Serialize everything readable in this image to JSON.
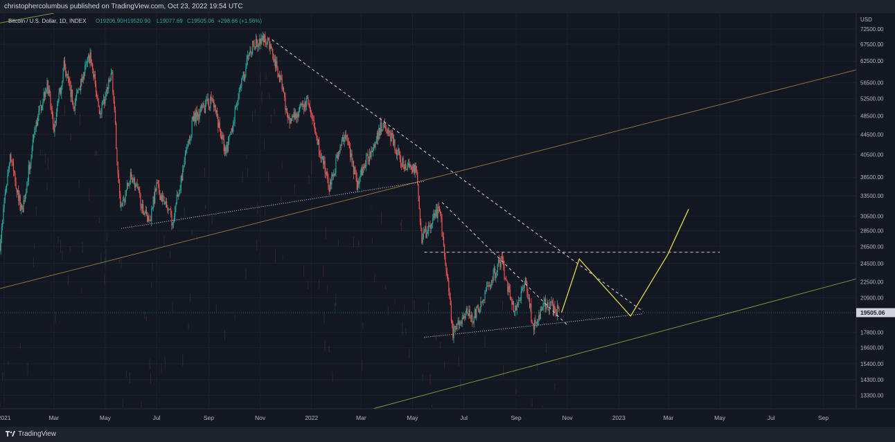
{
  "header": {
    "text": "christophercolumbus published on TradingView.com, Oct 23, 2022 19:54 UTC"
  },
  "footer": {
    "brand": "TradingView"
  },
  "colors": {
    "bg": "#131722",
    "up": "#26a69a",
    "down": "#ef5350",
    "price_tag": "#d1d4dc",
    "yellow": "#e5d94a",
    "orange": "#b08c43",
    "green": "#9fb84a",
    "white": "#d1d4dc"
  },
  "chart_data": {
    "type": "candlestick",
    "symbol_line": {
      "name": "Bitcoin / U.S. Dollar, 1D, INDEX",
      "open": "O19206.90",
      "high": "H19520.90",
      "low": "L19077.69",
      "close": "C19505.06",
      "change": "+298.66 (+1.56%)"
    },
    "currency": "USD",
    "last_price": 19505.06,
    "last_price_label": "19505.06",
    "y_axis": {
      "scale": "log",
      "range": [
        12500,
        78000
      ],
      "ticks": [
        "72500.00",
        "67500.00",
        "62500.00",
        "56500.00",
        "52500.00",
        "48500.00",
        "44500.00",
        "40500.00",
        "36500.00",
        "33500.00",
        "30500.00",
        "28500.00",
        "26500.00",
        "24500.00",
        "22500.00",
        "20900.00",
        "17800.00",
        "16600.00",
        "15400.00",
        "14300.00",
        "13300.00"
      ]
    },
    "x_axis": {
      "range": [
        "2020-12-27",
        "2023-10-10"
      ],
      "ticks": [
        {
          "date": "2021-01-01",
          "label": "2021"
        },
        {
          "date": "2021-03-01",
          "label": "Mar"
        },
        {
          "date": "2021-05-01",
          "label": "May"
        },
        {
          "date": "2021-07-01",
          "label": "Jul"
        },
        {
          "date": "2021-09-01",
          "label": "Sep"
        },
        {
          "date": "2021-11-01",
          "label": "Nov"
        },
        {
          "date": "2022-01-01",
          "label": "2022"
        },
        {
          "date": "2022-03-01",
          "label": "Mar"
        },
        {
          "date": "2022-05-01",
          "label": "May"
        },
        {
          "date": "2022-07-01",
          "label": "Jul"
        },
        {
          "date": "2022-09-01",
          "label": "Sep"
        },
        {
          "date": "2022-11-01",
          "label": "Nov"
        },
        {
          "date": "2023-01-01",
          "label": "2023"
        },
        {
          "date": "2023-03-01",
          "label": "Mar"
        },
        {
          "date": "2023-05-01",
          "label": "May"
        },
        {
          "date": "2023-07-01",
          "label": "Jul"
        },
        {
          "date": "2023-09-01",
          "label": "Sep"
        }
      ]
    },
    "price_path": [
      [
        "2020-12-27",
        26800
      ],
      [
        "2021-01-08",
        40500
      ],
      [
        "2021-01-22",
        31000
      ],
      [
        "2021-02-08",
        46500
      ],
      [
        "2021-02-21",
        57000
      ],
      [
        "2021-03-01",
        45500
      ],
      [
        "2021-03-13",
        61000
      ],
      [
        "2021-03-25",
        51000
      ],
      [
        "2021-04-13",
        64500
      ],
      [
        "2021-04-25",
        48500
      ],
      [
        "2021-05-09",
        59000
      ],
      [
        "2021-05-19",
        31000
      ],
      [
        "2021-06-01",
        37000
      ],
      [
        "2021-06-22",
        29500
      ],
      [
        "2021-07-01",
        35000
      ],
      [
        "2021-07-20",
        29800
      ],
      [
        "2021-08-14",
        48000
      ],
      [
        "2021-09-06",
        52500
      ],
      [
        "2021-09-21",
        40500
      ],
      [
        "2021-10-20",
        66500
      ],
      [
        "2021-11-10",
        69000
      ],
      [
        "2021-11-28",
        55000
      ],
      [
        "2021-12-04",
        47000
      ],
      [
        "2021-12-27",
        51500
      ],
      [
        "2022-01-22",
        35000
      ],
      [
        "2022-02-10",
        45000
      ],
      [
        "2022-02-24",
        35500
      ],
      [
        "2022-03-28",
        47500
      ],
      [
        "2022-04-18",
        39000
      ],
      [
        "2022-05-05",
        38000
      ],
      [
        "2022-05-12",
        27500
      ],
      [
        "2022-06-02",
        31500
      ],
      [
        "2022-06-18",
        17700
      ],
      [
        "2022-07-01",
        19500
      ],
      [
        "2022-07-13",
        19100
      ],
      [
        "2022-08-14",
        25000
      ],
      [
        "2022-08-29",
        19700
      ],
      [
        "2022-09-13",
        22500
      ],
      [
        "2022-09-21",
        18300
      ],
      [
        "2022-10-05",
        20400
      ],
      [
        "2022-10-23",
        19505
      ]
    ],
    "drawings": [
      {
        "kind": "solid",
        "color": "orange",
        "points": [
          [
            "2020-12-27",
            21800
          ],
          [
            "2023-10-10",
            60000
          ]
        ]
      },
      {
        "kind": "solid",
        "color": "green",
        "points": [
          [
            "2022-03-15",
            12500
          ],
          [
            "2023-10-10",
            22800
          ]
        ]
      },
      {
        "kind": "solid",
        "color": "green",
        "points": [
          [
            "2020-12-27",
            74500
          ],
          [
            "2021-03-01",
            78000
          ]
        ]
      },
      {
        "kind": "dotted",
        "color": "white",
        "points": [
          [
            "2021-05-20",
            28800
          ],
          [
            "2022-05-15",
            35800
          ]
        ]
      },
      {
        "kind": "dotted",
        "color": "white",
        "points": [
          [
            "2022-05-15",
            17400
          ],
          [
            "2023-01-30",
            19400
          ]
        ]
      },
      {
        "kind": "dashed",
        "color": "white",
        "points": [
          [
            "2021-11-15",
            69000
          ],
          [
            "2023-01-30",
            19600
          ]
        ]
      },
      {
        "kind": "dashed",
        "color": "white",
        "points": [
          [
            "2022-06-05",
            32500
          ],
          [
            "2022-11-01",
            18400
          ]
        ]
      },
      {
        "kind": "dashed",
        "color": "white",
        "points": [
          [
            "2022-05-15",
            25800
          ],
          [
            "2023-05-01",
            25800
          ]
        ]
      },
      {
        "kind": "solid",
        "color": "yellow",
        "points": [
          [
            "2022-10-25",
            19500
          ],
          [
            "2022-11-15",
            25000
          ],
          [
            "2023-01-15",
            19200
          ],
          [
            "2023-02-28",
            25500
          ],
          [
            "2023-03-25",
            31500
          ]
        ]
      }
    ]
  }
}
